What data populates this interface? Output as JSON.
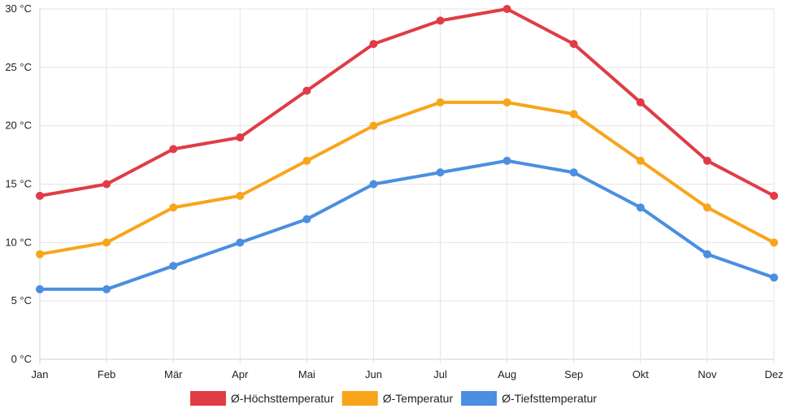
{
  "chart_data": {
    "type": "line",
    "categories": [
      "Jan",
      "Feb",
      "Mär",
      "Apr",
      "Mai",
      "Jun",
      "Jul",
      "Aug",
      "Sep",
      "Okt",
      "Nov",
      "Dez"
    ],
    "ylim": [
      0,
      30
    ],
    "yticks": [
      0,
      5,
      10,
      15,
      20,
      25,
      30
    ],
    "ytick_suffix": " °C",
    "grid": true,
    "legend_position": "bottom",
    "series": [
      {
        "name": "Ø-Höchsttemperatur",
        "color": "#e03c46",
        "values": [
          14,
          15,
          18,
          19,
          23,
          27,
          29,
          30,
          27,
          22,
          17,
          14
        ]
      },
      {
        "name": "Ø-Temperatur",
        "color": "#f8a51b",
        "values": [
          9,
          10,
          13,
          14,
          17,
          20,
          22,
          22,
          21,
          17,
          13,
          10
        ]
      },
      {
        "name": "Ø-Tiefsttemperatur",
        "color": "#4a8fe0",
        "values": [
          6,
          6,
          8,
          10,
          12,
          15,
          16,
          17,
          16,
          13,
          9,
          7
        ]
      }
    ]
  }
}
